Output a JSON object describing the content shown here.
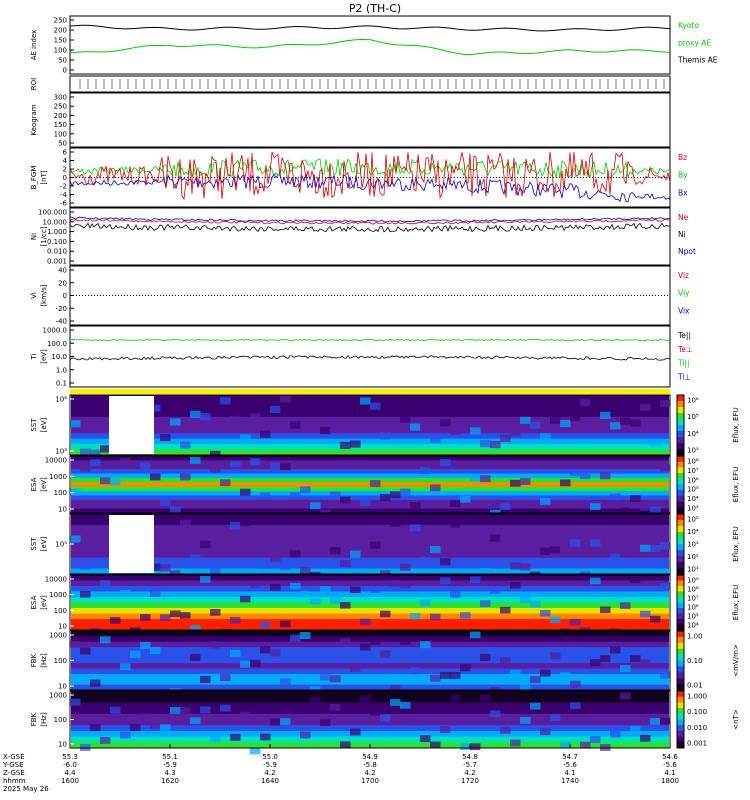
{
  "title": "P2 (TH-C)",
  "colors": {
    "black": "#000000",
    "red": "#dd0000",
    "green": "#00cc00",
    "blue": "#0000dd"
  },
  "panels": [
    {
      "id": "ae",
      "ylabel": "AE index",
      "ticks": [
        "250",
        "200",
        "150",
        "100",
        "50",
        "0"
      ],
      "legend": [
        {
          "text": "Kyoto",
          "color": "#00cc00"
        },
        {
          "text": "proxy AE",
          "color": "#00cc00"
        },
        {
          "text": "Themis AE",
          "color": "#000000"
        }
      ]
    },
    {
      "id": "roi",
      "ylabel": "ROI",
      "ticks": [],
      "legend": []
    },
    {
      "id": "keogram",
      "ylabel": "Keogram",
      "ticks": [
        "300",
        "250",
        "200",
        "150",
        "100",
        "50"
      ],
      "legend": []
    },
    {
      "id": "bfgm",
      "ylabel": "B_FGM",
      "ylabel2": "[nT]",
      "ticks": [
        "6",
        "4",
        "2",
        "0",
        "-2",
        "-4",
        "-6"
      ],
      "legend": [
        {
          "text": "Bz",
          "color": "#dd0000"
        },
        {
          "text": "By",
          "color": "#00cc00"
        },
        {
          "text": "Bx",
          "color": "#0000dd"
        }
      ]
    },
    {
      "id": "ni",
      "ylabel": "Ni",
      "ylabel2": "[1/cc]",
      "ticks": [
        "100.000",
        "10.000",
        "1.000",
        "0.100",
        "0.010",
        "0.001"
      ],
      "legend": [
        {
          "text": "Ne",
          "color": "#dd0000"
        },
        {
          "text": "Ni",
          "color": "#000000"
        },
        {
          "text": "Npot",
          "color": "#0000dd"
        }
      ]
    },
    {
      "id": "vi",
      "ylabel": "Vi",
      "ylabel2": "[km/s]",
      "ticks": [
        "40",
        "20",
        "0",
        "-20",
        "-40"
      ],
      "legend": [
        {
          "text": "Viz",
          "color": "#dd0000"
        },
        {
          "text": "Viy",
          "color": "#00cc00"
        },
        {
          "text": "Vix",
          "color": "#0000dd"
        }
      ]
    },
    {
      "id": "ti",
      "ylabel": "Ti",
      "ylabel2": "[eV]",
      "ticks": [
        "1000.0",
        "100.0",
        "10.0",
        "1.0",
        "0.1"
      ],
      "legend": [
        {
          "text": "Te||",
          "color": "#000000"
        },
        {
          "text": "Te⊥",
          "color": "#dd0000"
        },
        {
          "text": "Ti||",
          "color": "#00cc00"
        },
        {
          "text": "Ti⊥",
          "color": "#0000dd"
        }
      ]
    },
    {
      "id": "sst_i",
      "ylabel": "SST",
      "ylabel2": "[eV]",
      "ticks": [
        "10⁶",
        "10⁵"
      ],
      "legend": []
    },
    {
      "id": "esa_i",
      "ylabel": "ESA",
      "ylabel2": "[eV]",
      "ticks": [
        "10000",
        "1000",
        "100",
        "10"
      ],
      "legend": []
    },
    {
      "id": "sst_e",
      "ylabel": "SST",
      "ylabel2": "[eV]",
      "ticks": [
        "10⁵"
      ],
      "legend": []
    },
    {
      "id": "esa_e",
      "ylabel": "ESA",
      "ylabel2": "[eV]",
      "ticks": [
        "10000",
        "1000",
        "100",
        "10"
      ],
      "legend": []
    },
    {
      "id": "fbk_e",
      "ylabel": "FBK",
      "ylabel2": "[Hz]",
      "ticks": [
        "1000",
        "100",
        "10"
      ],
      "legend": []
    },
    {
      "id": "fbk_b",
      "ylabel": "FBK",
      "ylabel2": "[Hz]",
      "ticks": [
        "1000",
        "100",
        "10"
      ],
      "legend": []
    }
  ],
  "colorbars": [
    {
      "label": "Eflux, EFU",
      "ticks": [
        "10⁶",
        "10⁵",
        "10⁴",
        "10³"
      ]
    },
    {
      "label": "Eflux, EFU",
      "ticks": [
        "10⁸",
        "10⁷",
        "10⁶",
        "10⁵",
        "10⁴",
        "10³"
      ]
    },
    {
      "label": "Eflux, EFU",
      "ticks": [
        "10⁵",
        "10⁴",
        "10³",
        "10²",
        "10¹"
      ]
    },
    {
      "label": "Eflux, EFU",
      "ticks": [
        "10⁹",
        "10⁸",
        "10⁷",
        "10⁶",
        "10⁵",
        "10⁴"
      ]
    },
    {
      "label": "<mV/m>",
      "ticks": [
        "1.00",
        "0.10",
        "0.01"
      ]
    },
    {
      "label": "<nT>",
      "ticks": [
        "1.000",
        "0.100",
        "0.010",
        "0.001"
      ]
    }
  ],
  "xaxis": {
    "row_labels": [
      "X-GSE",
      "Y-GSE",
      "Z-GSE",
      "hhmm",
      "2025 May 26"
    ],
    "columns": [
      {
        "x": "55.3",
        "y": "-6.0",
        "z": "4.4",
        "t": "1600"
      },
      {
        "x": "55.1",
        "y": "-5.9",
        "z": "4.3",
        "t": "1620"
      },
      {
        "x": "55.0",
        "y": "-5.9",
        "z": "4.2",
        "t": "1640"
      },
      {
        "x": "54.9",
        "y": "-5.8",
        "z": "4.2",
        "t": "1700"
      },
      {
        "x": "54.8",
        "y": "-5.7",
        "z": "4.2",
        "t": "1720"
      },
      {
        "x": "54.7",
        "y": "-5.6",
        "z": "4.1",
        "t": "1740"
      },
      {
        "x": "54.6",
        "y": "-5.6",
        "z": "4.1",
        "t": "1800"
      }
    ]
  },
  "chart_data": {
    "type": "line",
    "title": "P2 (TH-C)",
    "x": [
      "1600",
      "1620",
      "1640",
      "1700",
      "1720",
      "1740",
      "1800"
    ],
    "series": [
      {
        "name": "Themis AE",
        "values": [
          220,
          205,
          210,
          215,
          205,
          200,
          210
        ]
      },
      {
        "name": "Kyoto proxy AE",
        "values": [
          80,
          125,
          115,
          150,
          80,
          95,
          95
        ]
      }
    ],
    "ylabel": "AE index",
    "ylim": [
      0,
      250
    ],
    "grid": false,
    "legend": "right"
  }
}
